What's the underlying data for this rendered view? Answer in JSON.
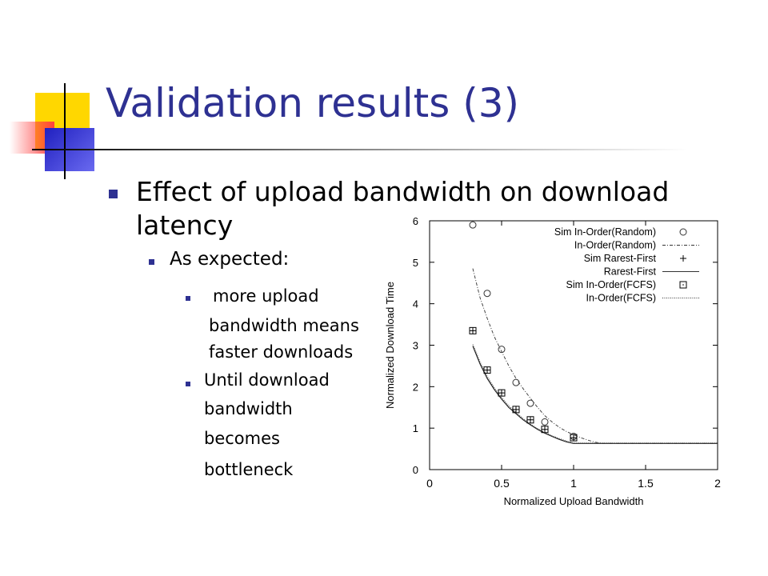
{
  "slide": {
    "title": "Validation results (3)",
    "accent_color": "#2E3192",
    "bullets": {
      "level1": [
        "Effect of upload bandwidth on download",
        "latency"
      ],
      "level2": "As expected:",
      "level3a": [
        "more upload",
        "bandwidth means",
        "faster downloads"
      ],
      "level3b": [
        "Until download",
        "bandwidth",
        "becomes",
        "bottleneck"
      ]
    }
  },
  "chart_data": {
    "type": "scatter",
    "xlabel": "Normalized Upload Bandwidth",
    "ylabel": "Normalized Download Time",
    "xlim": [
      0,
      2
    ],
    "ylim": [
      0,
      6
    ],
    "xticks": [
      "0",
      "0.5",
      "1",
      "1.5",
      "2"
    ],
    "yticks": [
      "0",
      "1",
      "2",
      "3",
      "4",
      "5",
      "6"
    ],
    "legend_position": "top-right",
    "series": [
      {
        "name": "Sim In-Order(Random)",
        "kind": "marker",
        "marker": "circle",
        "x": [
          0.3,
          0.4,
          0.5,
          0.6,
          0.7,
          0.8,
          1.0
        ],
        "y": [
          5.9,
          4.25,
          2.9,
          2.1,
          1.6,
          1.15,
          0.8
        ]
      },
      {
        "name": "In-Order(Random)",
        "kind": "line",
        "style": "dash-dot",
        "x": [
          0.3,
          0.35,
          0.4,
          0.45,
          0.5,
          0.55,
          0.6,
          0.65,
          0.7,
          0.75,
          0.8,
          0.85,
          0.9,
          0.95,
          1.0,
          1.05,
          1.1,
          1.15,
          1.2,
          2.0
        ],
        "y": [
          4.85,
          4.15,
          3.65,
          3.2,
          2.85,
          2.5,
          2.2,
          1.95,
          1.72,
          1.5,
          1.3,
          1.15,
          1.02,
          0.92,
          0.84,
          0.77,
          0.71,
          0.66,
          0.63,
          0.63
        ]
      },
      {
        "name": "Sim Rarest-First",
        "kind": "marker",
        "marker": "plus",
        "x": [
          0.3,
          0.4,
          0.5,
          0.6,
          0.7,
          0.8,
          1.0
        ],
        "y": [
          3.35,
          2.4,
          1.85,
          1.45,
          1.2,
          0.97,
          0.77
        ]
      },
      {
        "name": "Rarest-First",
        "kind": "line",
        "style": "solid",
        "x": [
          0.3,
          0.35,
          0.4,
          0.45,
          0.5,
          0.55,
          0.6,
          0.65,
          0.7,
          0.75,
          0.8,
          0.85,
          0.9,
          0.95,
          1.0,
          2.0
        ],
        "y": [
          2.98,
          2.55,
          2.2,
          1.93,
          1.7,
          1.5,
          1.35,
          1.2,
          1.08,
          0.97,
          0.88,
          0.8,
          0.73,
          0.67,
          0.63,
          0.63
        ]
      },
      {
        "name": "Sim In-Order(FCFS)",
        "kind": "marker",
        "marker": "square",
        "x": [
          0.3,
          0.4,
          0.5,
          0.6,
          0.7,
          0.8,
          1.0
        ],
        "y": [
          3.35,
          2.4,
          1.85,
          1.45,
          1.2,
          0.97,
          0.77
        ]
      },
      {
        "name": "In-Order(FCFS)",
        "kind": "line",
        "style": "dotted",
        "x": [
          0.3,
          0.35,
          0.4,
          0.45,
          0.5,
          0.55,
          0.6,
          0.65,
          0.7,
          0.75,
          0.8,
          0.85,
          0.9,
          0.95,
          1.0,
          2.0
        ],
        "y": [
          3.02,
          2.6,
          2.25,
          1.97,
          1.74,
          1.54,
          1.38,
          1.23,
          1.1,
          0.99,
          0.9,
          0.82,
          0.75,
          0.69,
          0.64,
          0.64
        ]
      }
    ]
  }
}
